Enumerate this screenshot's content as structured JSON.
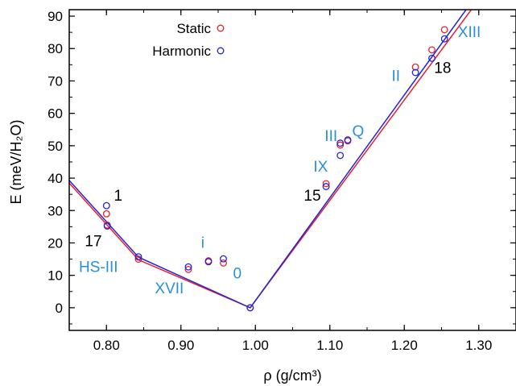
{
  "chart_data": {
    "type": "scatter",
    "xlabel": "ρ (g/cm³)",
    "ylabel": "E (meV/H₂O)",
    "xlim": [
      0.75,
      1.35
    ],
    "ylim": [
      -7,
      92
    ],
    "x_ticks": [
      "0.80",
      "0.90",
      "1.00",
      "1.10",
      "1.20",
      "1.30"
    ],
    "x_tick_values": [
      0.8,
      0.9,
      1.0,
      1.1,
      1.2,
      1.3
    ],
    "y_ticks": [
      "0",
      "10",
      "20",
      "30",
      "40",
      "50",
      "60",
      "70",
      "80",
      "90"
    ],
    "y_tick_values": [
      0,
      10,
      20,
      30,
      40,
      50,
      60,
      70,
      80,
      90
    ],
    "legend_position": "top-left",
    "grid": false,
    "series": [
      {
        "name": "Static",
        "color": "#e8202a",
        "points": [
          {
            "x": 0.8,
            "y": 29.0
          },
          {
            "x": 0.801,
            "y": 25.5
          },
          {
            "x": 0.843,
            "y": 15.0
          },
          {
            "x": 0.91,
            "y": 11.8
          },
          {
            "x": 0.937,
            "y": 14.5
          },
          {
            "x": 0.957,
            "y": 13.8
          },
          {
            "x": 0.993,
            "y": 0.0
          },
          {
            "x": 1.095,
            "y": 38.3
          },
          {
            "x": 1.114,
            "y": 50.2
          },
          {
            "x": 1.124,
            "y": 51.5
          },
          {
            "x": 1.215,
            "y": 74.3
          },
          {
            "x": 1.237,
            "y": 79.6
          },
          {
            "x": 1.254,
            "y": 85.8
          }
        ],
        "fit_line": [
          [
            0.75,
            38.5
          ],
          [
            0.843,
            14.8
          ],
          [
            0.993,
            0.0
          ],
          [
            1.29,
            92.0
          ]
        ]
      },
      {
        "name": "Harmonic",
        "color": "#2424d8",
        "points": [
          {
            "x": 0.8,
            "y": 31.5
          },
          {
            "x": 0.801,
            "y": 25.2
          },
          {
            "x": 0.843,
            "y": 15.7
          },
          {
            "x": 0.91,
            "y": 12.6
          },
          {
            "x": 0.937,
            "y": 14.2
          },
          {
            "x": 0.957,
            "y": 15.1
          },
          {
            "x": 0.993,
            "y": 0.0
          },
          {
            "x": 1.095,
            "y": 37.4
          },
          {
            "x": 1.114,
            "y": 47.0
          },
          {
            "x": 1.114,
            "y": 50.8
          },
          {
            "x": 1.124,
            "y": 51.8
          },
          {
            "x": 1.215,
            "y": 72.6
          },
          {
            "x": 1.237,
            "y": 77.0
          },
          {
            "x": 1.254,
            "y": 83.0
          }
        ],
        "fit_line": [
          [
            0.75,
            39.3
          ],
          [
            0.843,
            15.6
          ],
          [
            0.993,
            0.0
          ],
          [
            1.283,
            92.0
          ]
        ]
      }
    ],
    "annotations": [
      {
        "text": "1",
        "color": "#000000",
        "x": 0.81,
        "y": 33.0
      },
      {
        "text": "17",
        "color": "#000000",
        "x": 0.771,
        "y": 19.0
      },
      {
        "text": "HS-III",
        "color": "#2a8fd6",
        "x": 0.763,
        "y": 11.0
      },
      {
        "text": "XVII",
        "color": "#2a8fd6",
        "x": 0.865,
        "y": 4.5
      },
      {
        "text": "i",
        "color": "#2a8fd6",
        "x": 0.927,
        "y": 18.5
      },
      {
        "text": "0",
        "color": "#2a8fd6",
        "x": 0.97,
        "y": 9.0
      },
      {
        "text": "15",
        "color": "#000000",
        "x": 1.065,
        "y": 33.0
      },
      {
        "text": "IX",
        "color": "#2a8fd6",
        "x": 1.078,
        "y": 42.0
      },
      {
        "text": "III",
        "color": "#2a8fd6",
        "x": 1.093,
        "y": 51.5
      },
      {
        "text": "Q",
        "color": "#2a8fd6",
        "x": 1.13,
        "y": 53.0
      },
      {
        "text": "II",
        "color": "#2a8fd6",
        "x": 1.183,
        "y": 70.0
      },
      {
        "text": "18",
        "color": "#000000",
        "x": 1.24,
        "y": 72.5
      },
      {
        "text": "XIII",
        "color": "#2a8fd6",
        "x": 1.272,
        "y": 83.5
      }
    ]
  }
}
